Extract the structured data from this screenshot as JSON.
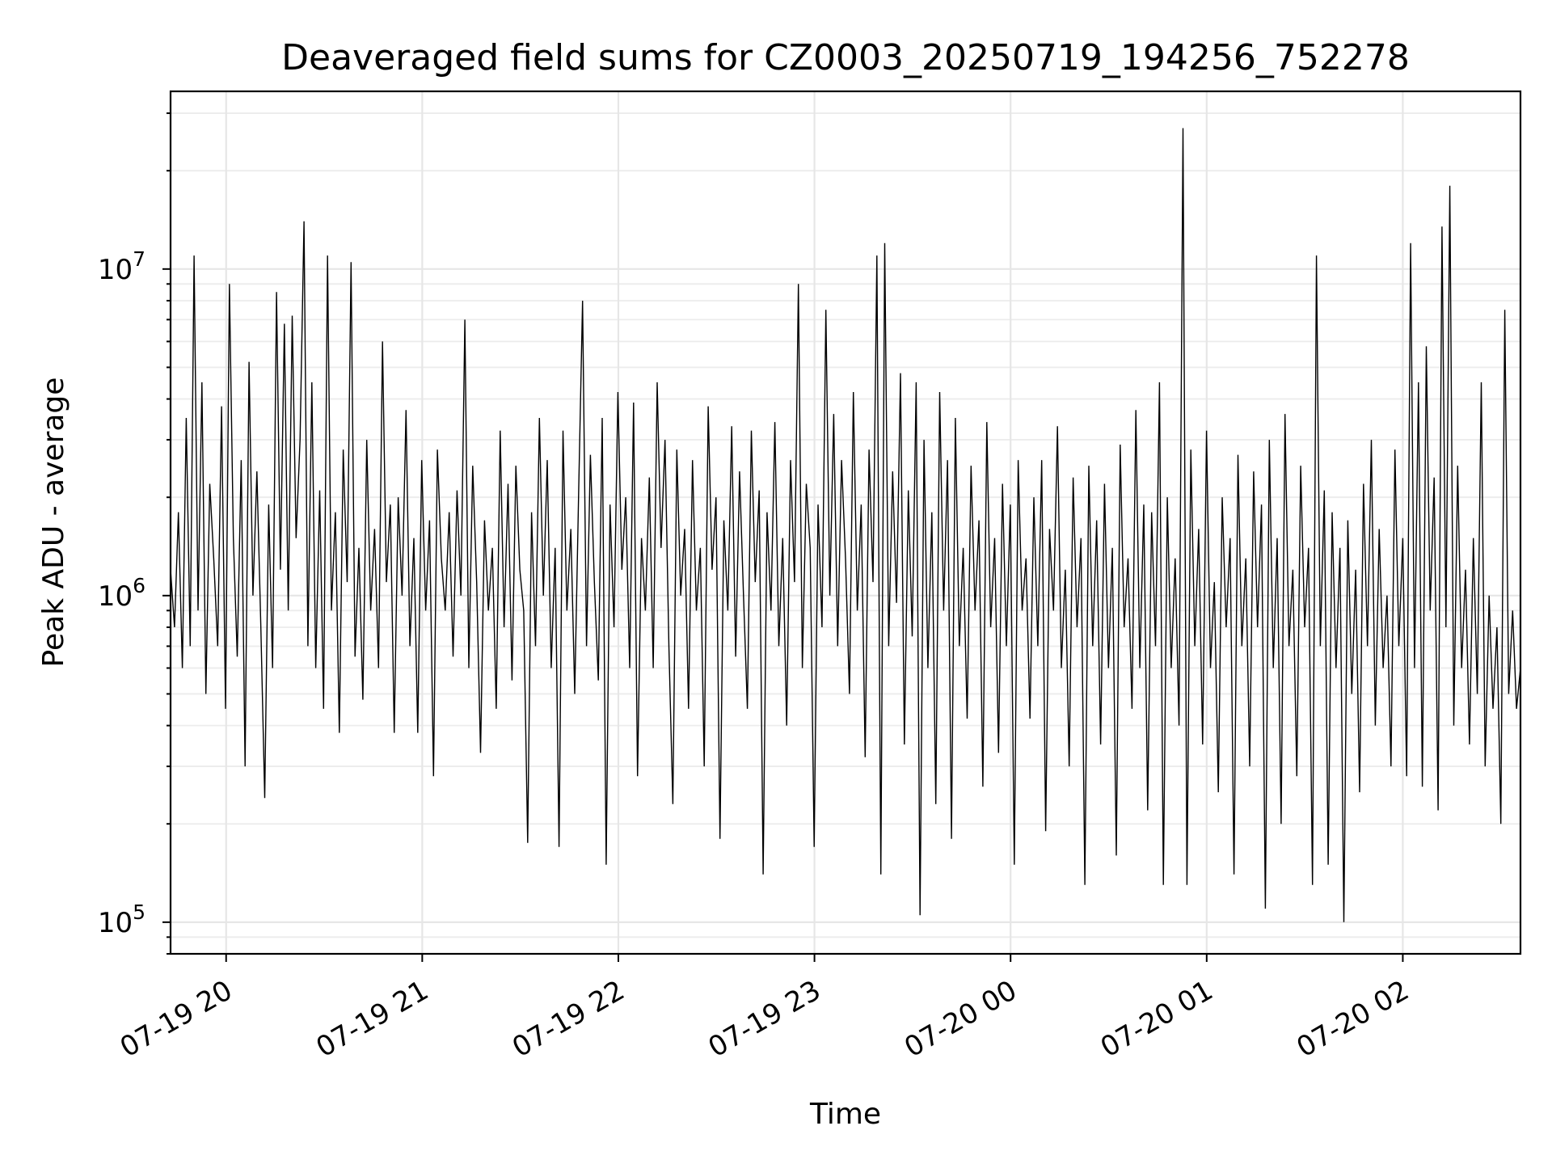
{
  "chart_data": {
    "type": "line",
    "title": "Deaveraged field sums for CZ0003_20250719_194256_752278",
    "xlabel": "Time",
    "ylabel": "Peak ADU - average",
    "yscale": "log",
    "xlim": [
      "2025-07-19 19:43",
      "2025-07-20 02:36"
    ],
    "ylim": [
      80000,
      35000000
    ],
    "grid": true,
    "line_color": "#000000",
    "x_ticks": [
      "07-19 20",
      "07-19 21",
      "07-19 22",
      "07-19 23",
      "07-20 00",
      "07-20 01",
      "07-20 02"
    ],
    "y_ticks": [
      {
        "base": "10",
        "exp": "5",
        "value": 100000
      },
      {
        "base": "10",
        "exp": "6",
        "value": 1000000
      },
      {
        "base": "10",
        "exp": "7",
        "value": 10000000
      }
    ],
    "series": [
      {
        "x_start": "2025-07-19 19:43",
        "x_end": "2025-07-20 02:36",
        "values": [
          1200000,
          800000,
          1800000,
          600000,
          3500000,
          700000,
          11000000,
          900000,
          4500000,
          500000,
          2200000,
          1300000,
          700000,
          3800000,
          450000,
          9000000,
          1500000,
          650000,
          2600000,
          300000,
          5200000,
          1000000,
          2400000,
          800000,
          240000,
          1900000,
          600000,
          8500000,
          1200000,
          6800000,
          900000,
          7200000,
          1500000,
          3000000,
          14000000,
          700000,
          4500000,
          600000,
          2100000,
          450000,
          11000000,
          900000,
          1800000,
          380000,
          2800000,
          1100000,
          10500000,
          650000,
          1400000,
          480000,
          3000000,
          900000,
          1600000,
          600000,
          6000000,
          1100000,
          1900000,
          380000,
          2000000,
          1000000,
          3700000,
          700000,
          1500000,
          380000,
          2600000,
          900000,
          1700000,
          280000,
          2800000,
          1300000,
          900000,
          1800000,
          650000,
          2100000,
          1000000,
          7000000,
          600000,
          2500000,
          1100000,
          330000,
          1700000,
          900000,
          1400000,
          450000,
          3200000,
          800000,
          2200000,
          550000,
          2500000,
          1200000,
          900000,
          175000,
          1800000,
          700000,
          3500000,
          1000000,
          2600000,
          600000,
          1400000,
          170000,
          3200000,
          900000,
          1600000,
          500000,
          2100000,
          8000000,
          700000,
          2700000,
          1100000,
          550000,
          3500000,
          150000,
          1900000,
          800000,
          4200000,
          1200000,
          2000000,
          600000,
          3900000,
          280000,
          1500000,
          900000,
          2300000,
          600000,
          4500000,
          1400000,
          3000000,
          700000,
          230000,
          2800000,
          1000000,
          1600000,
          450000,
          2600000,
          900000,
          1400000,
          300000,
          3800000,
          1200000,
          2000000,
          180000,
          1700000,
          900000,
          3300000,
          650000,
          2400000,
          1000000,
          450000,
          3200000,
          1100000,
          2100000,
          140000,
          1800000,
          900000,
          3400000,
          700000,
          1500000,
          400000,
          2600000,
          1100000,
          9000000,
          600000,
          2200000,
          1400000,
          170000,
          1900000,
          800000,
          7500000,
          1000000,
          3600000,
          700000,
          2600000,
          1300000,
          500000,
          4200000,
          900000,
          1900000,
          320000,
          2800000,
          1100000,
          11000000,
          140000,
          12000000,
          700000,
          2400000,
          950000,
          4800000,
          350000,
          2100000,
          750000,
          4500000,
          105000,
          3000000,
          600000,
          1800000,
          230000,
          4200000,
          900000,
          2600000,
          180000,
          3500000,
          700000,
          1400000,
          420000,
          2500000,
          900000,
          1700000,
          260000,
          3400000,
          800000,
          1500000,
          330000,
          2200000,
          700000,
          1900000,
          150000,
          2600000,
          900000,
          1300000,
          420000,
          2000000,
          700000,
          2600000,
          190000,
          1600000,
          900000,
          3300000,
          600000,
          1200000,
          300000,
          2300000,
          800000,
          1500000,
          130000,
          2500000,
          700000,
          1700000,
          350000,
          2200000,
          600000,
          1400000,
          160000,
          2900000,
          800000,
          1300000,
          450000,
          3700000,
          600000,
          1900000,
          220000,
          1800000,
          700000,
          4500000,
          130000,
          2000000,
          600000,
          1300000,
          400000,
          27000000,
          130000,
          2800000,
          700000,
          1600000,
          350000,
          3200000,
          600000,
          1100000,
          250000,
          2000000,
          800000,
          1500000,
          140000,
          2700000,
          700000,
          1300000,
          300000,
          2400000,
          800000,
          1900000,
          110000,
          3000000,
          600000,
          1500000,
          200000,
          3600000,
          700000,
          1200000,
          280000,
          2500000,
          800000,
          1400000,
          130000,
          11000000,
          700000,
          2100000,
          150000,
          1800000,
          600000,
          1400000,
          100000,
          1700000,
          500000,
          1200000,
          250000,
          2200000,
          700000,
          3000000,
          400000,
          1600000,
          600000,
          1000000,
          300000,
          2800000,
          700000,
          1500000,
          280000,
          12000000,
          600000,
          4500000,
          260000,
          5800000,
          900000,
          2300000,
          220000,
          13500000,
          800000,
          18000000,
          400000,
          2500000,
          600000,
          1200000,
          350000,
          1500000,
          500000,
          4500000,
          300000,
          1000000,
          450000,
          800000,
          200000,
          7500000,
          500000,
          900000,
          450000,
          600000
        ]
      }
    ]
  }
}
